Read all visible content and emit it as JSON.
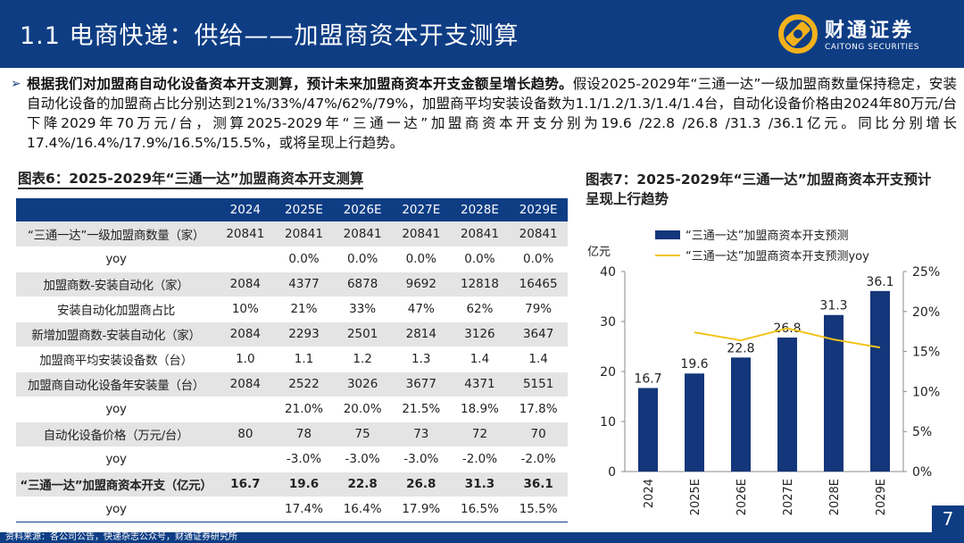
{
  "header": {
    "title": "1.1 电商快递：供给——加盟商资本开支测算",
    "logo_cn": "财通证券",
    "logo_en": "CAITONG SECURITIES"
  },
  "intro": {
    "bold_text": "根据我们对加盟商自动化设备资本开支测算，预计未来加盟商资本开支金额呈增长趋势。",
    "text": "假设2025-2029年“三通一达”一级加盟商数量保持稳定，安装自动化设备的加盟商占比分别达到21%/33%/47%/62%/79%，加盟商平均安装设备数为1.1/1.2/1.3/1.4/1.4台，自动化设备价格由2024年80万元/台下降2029年70万元/台，测算2025-2029年“三通一达”加盟商资本开支分别为19.6 /22.8 /26.8 /31.3 /36.1亿元。同比分别增长17.4%/16.4%/17.9%/16.5%/15.5%，或将呈现上行趋势。"
  },
  "table": {
    "title": "图表6：2025-2029年“三通一达”加盟商资本开支测算",
    "headers": [
      "",
      "2024",
      "2025E",
      "2026E",
      "2027E",
      "2028E",
      "2029E"
    ],
    "rows": [
      {
        "label": "“三通一达”一级加盟商数量（家）",
        "cells": [
          "20841",
          "20841",
          "20841",
          "20841",
          "20841",
          "20841"
        ]
      },
      {
        "label": "yoy",
        "cells": [
          "",
          "0.0%",
          "0.0%",
          "0.0%",
          "0.0%",
          "0.0%"
        ]
      },
      {
        "label": "加盟商数-安装自动化（家）",
        "cells": [
          "2084",
          "4377",
          "6878",
          "9692",
          "12818",
          "16465"
        ]
      },
      {
        "label": "安装自动化加盟商占比",
        "cells": [
          "10%",
          "21%",
          "33%",
          "47%",
          "62%",
          "79%"
        ]
      },
      {
        "label": "新增加盟商数-安装自动化（家）",
        "cells": [
          "2084",
          "2293",
          "2501",
          "2814",
          "3126",
          "3647"
        ]
      },
      {
        "label": "加盟商平均安装设备数（台）",
        "cells": [
          "1.0",
          "1.1",
          "1.2",
          "1.3",
          "1.4",
          "1.4"
        ]
      },
      {
        "label": "加盟商自动化设备年安装量（台）",
        "cells": [
          "2084",
          "2522",
          "3026",
          "3677",
          "4371",
          "5151"
        ]
      },
      {
        "label": "yoy",
        "cells": [
          "",
          "21.0%",
          "20.0%",
          "21.5%",
          "18.9%",
          "17.8%"
        ]
      },
      {
        "label": "自动化设备价格（万元/台）",
        "cells": [
          "80",
          "78",
          "75",
          "73",
          "72",
          "70"
        ]
      },
      {
        "label": "yoy",
        "cells": [
          "",
          "-3.0%",
          "-3.0%",
          "-3.0%",
          "-2.0%",
          "-2.0%"
        ]
      },
      {
        "label": "“三通一达”加盟商资本开支（亿元）",
        "cells": [
          "16.7",
          "19.6",
          "22.8",
          "26.8",
          "31.3",
          "36.1"
        ]
      },
      {
        "label": "yoy",
        "cells": [
          "",
          "17.4%",
          "16.4%",
          "17.9%",
          "16.5%",
          "15.5%"
        ]
      }
    ]
  },
  "chart_title": "图表7：2025-2029年“三通一达”加盟商资本开支预计呈现上行趋势",
  "chart_data": {
    "type": "bar",
    "title": "图表7：2025-2029年“三通一达”加盟商资本开支预计呈现上行趋势",
    "categories": [
      "2024",
      "2025E",
      "2026E",
      "2027E",
      "2028E",
      "2029E"
    ],
    "series": [
      {
        "name": "“三通一达”加盟商资本开支预测",
        "type": "bar",
        "axis": "left",
        "values": [
          16.7,
          19.6,
          22.8,
          26.8,
          31.3,
          36.1
        ],
        "labels": [
          "16.7",
          "19.6",
          "22.8",
          "26.8",
          "31.3",
          "36.1"
        ]
      },
      {
        "name": "“三通一达”加盟商资本开支预测yoy",
        "type": "line",
        "axis": "right",
        "values": [
          null,
          17.4,
          16.4,
          17.9,
          16.5,
          15.5
        ]
      }
    ],
    "ylabel": "亿元",
    "ylim": [
      0,
      40
    ],
    "yticks": [
      "0",
      "10",
      "20",
      "30",
      "40"
    ],
    "y2lim": [
      0,
      25
    ],
    "y2ticks": [
      "0%",
      "5%",
      "10%",
      "15%",
      "20%",
      "25%"
    ],
    "colors": {
      "bar": "#14367a",
      "line": "#f2c31a",
      "axis": "#888888"
    }
  },
  "footer": {
    "source": "资料来源：各公司公告，快递杂志公众号，财通证券研究所",
    "page": "7"
  }
}
